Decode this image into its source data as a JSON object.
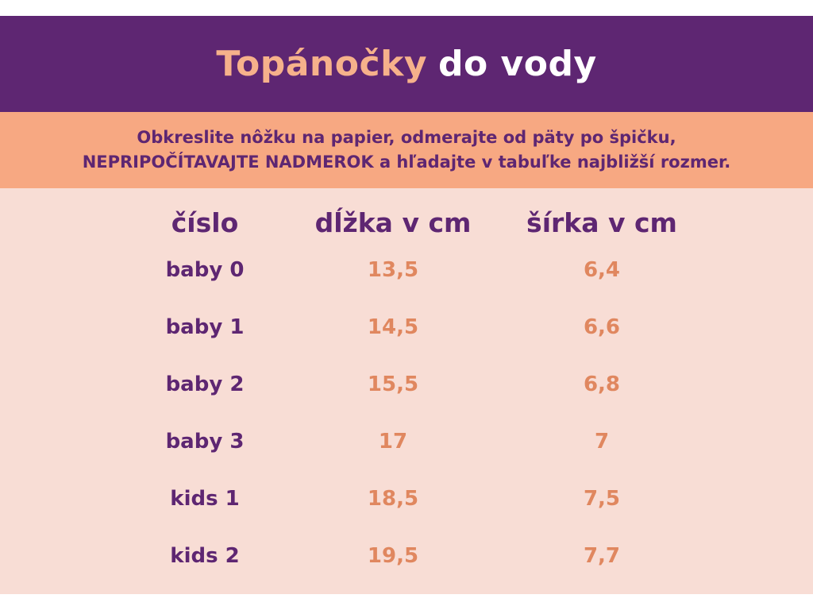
{
  "header": {
    "title_accent": "Topánočky",
    "title_rest": "do vody"
  },
  "instructions": {
    "line1": "Obkreslite nôžku na papier, odmerajte od päty po špičku,",
    "line2": "NEPRIPOČÍTAVAJTE NADMEROK a hľadajte v tabuľke najbližší rozmer."
  },
  "table": {
    "headers": [
      "číslo",
      "dĺžka v cm",
      "šírka v cm"
    ],
    "rows": [
      [
        "baby 0",
        "13,5",
        "6,4"
      ],
      [
        "baby 1",
        "14,5",
        "6,6"
      ],
      [
        "baby 2",
        "15,5",
        "6,8"
      ],
      [
        "baby 3",
        "17",
        "7"
      ],
      [
        "kids 1",
        "18,5",
        "7,5"
      ],
      [
        "kids 2",
        "19,5",
        "7,7"
      ]
    ]
  },
  "colors": {
    "purple": "#5e2672",
    "peach_band": "#f7a882",
    "table_bg": "#f8ddd5",
    "value_orange": "#e0875f",
    "title_accent": "#f6b18b"
  }
}
